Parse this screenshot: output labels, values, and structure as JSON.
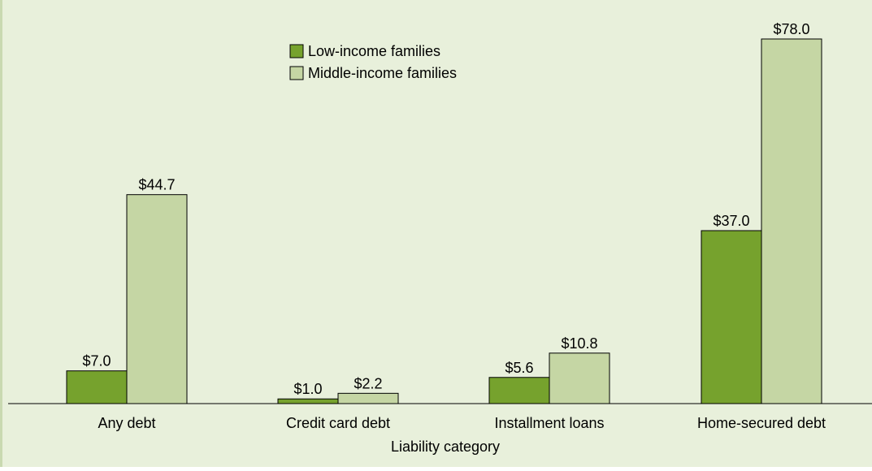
{
  "chart_data": {
    "type": "bar",
    "categories": [
      "Any debt",
      "Credit card debt",
      "Installment loans",
      "Home-secured debt"
    ],
    "series": [
      {
        "name": "Low-income families",
        "values": [
          7.0,
          1.0,
          5.6,
          37.0
        ],
        "labels": [
          "$7.0",
          "$1.0",
          "$5.6",
          "$37.0"
        ],
        "color": "#76a22d"
      },
      {
        "name": "Middle-income families",
        "values": [
          44.7,
          2.2,
          10.8,
          78.0
        ],
        "labels": [
          "$44.7",
          "$2.2",
          "$10.8",
          "$78.0"
        ],
        "color": "#c5d6a4"
      }
    ],
    "xlabel": "Liability category",
    "ylabel": "",
    "ylim": [
      0,
      78
    ],
    "grid": false,
    "legend": "top-center",
    "colors": {
      "background": "#e8f0db",
      "axis": "#000000",
      "bar_border": "#000000"
    }
  }
}
